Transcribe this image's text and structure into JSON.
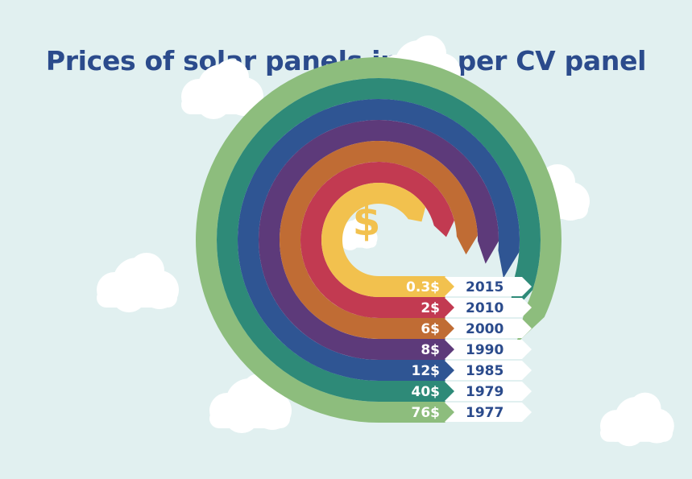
{
  "title": "Prices of solar panels in US per CV panel",
  "icon": "dollar-sign-icon",
  "background_color": "#e1f0f0",
  "title_color": "#2b4b8c",
  "chart_data": {
    "type": "bar",
    "title": "Prices of solar panels in US per CV panel",
    "categories": [
      "2015",
      "2010",
      "2000",
      "1990",
      "1985",
      "1979",
      "1977"
    ],
    "series": [
      {
        "values": [
          0.3,
          2,
          6,
          8,
          12,
          40,
          76
        ],
        "labels": [
          "0.3$",
          "2$",
          "6$",
          "8$",
          "12$",
          "40$",
          "76$"
        ],
        "colors": [
          "#f2c14e",
          "#c23a51",
          "#c06c34",
          "#5d3a7a",
          "#2f5593",
          "#2e8a78",
          "#8dbd7d"
        ]
      }
    ],
    "xlabel": "",
    "ylabel": ""
  }
}
